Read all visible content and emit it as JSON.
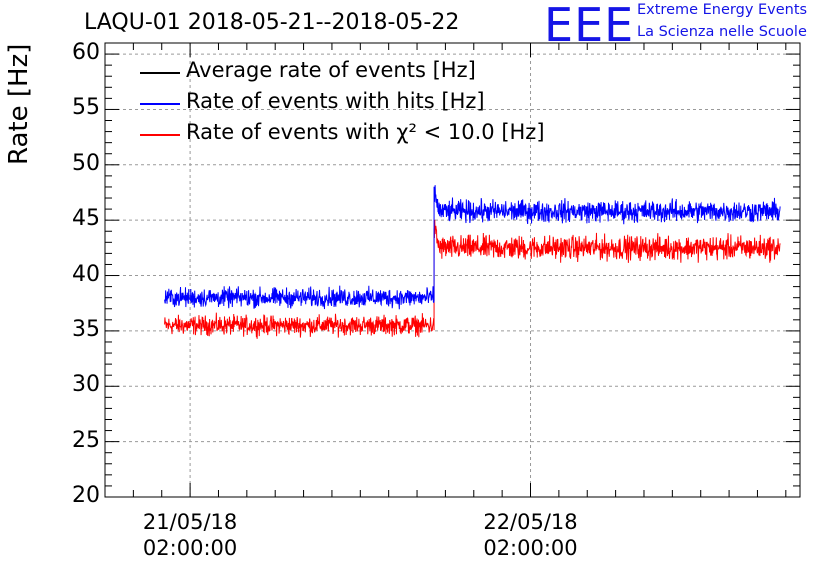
{
  "title": "LAQU-01 2018-05-21--2018-05-22",
  "logo": {
    "mark": "EEE",
    "line1": "Extreme Energy Events",
    "line2": "La Scienza nelle Scuole"
  },
  "chart_data": {
    "type": "line",
    "ylabel": "Rate [Hz]",
    "xlabel": "",
    "ylim": [
      20,
      61
    ],
    "yticks": [
      20,
      25,
      30,
      35,
      40,
      45,
      50,
      55,
      60
    ],
    "xticks": [
      {
        "date": "21/05/18",
        "time": "02:00:00",
        "hour": 2
      },
      {
        "date": "22/05/18",
        "time": "02:00:00",
        "hour": 26
      }
    ],
    "xlim_hours": [
      -4,
      45
    ],
    "grid": true,
    "legend_position": "top-left",
    "series": [
      {
        "name": "Average rate of events [Hz]",
        "color": "#000000",
        "segments": []
      },
      {
        "name": "Rate of events with hits [Hz]",
        "color": "#0000ff",
        "segments": [
          {
            "x_start_hours": 0.2,
            "x_end_hours": 19.2,
            "mean": 38.0,
            "spread": 0.8
          },
          {
            "x_start_hours": 19.2,
            "x_end_hours": 43.6,
            "mean": 45.8,
            "spread": 0.9
          }
        ]
      },
      {
        "name": "Rate of events with χ² < 10.0 [Hz]",
        "color": "#ff0000",
        "segments": [
          {
            "x_start_hours": 0.2,
            "x_end_hours": 19.2,
            "mean": 35.5,
            "spread": 0.8
          },
          {
            "x_start_hours": 19.2,
            "x_end_hours": 43.6,
            "mean": 42.5,
            "spread": 1.0
          }
        ]
      }
    ]
  }
}
